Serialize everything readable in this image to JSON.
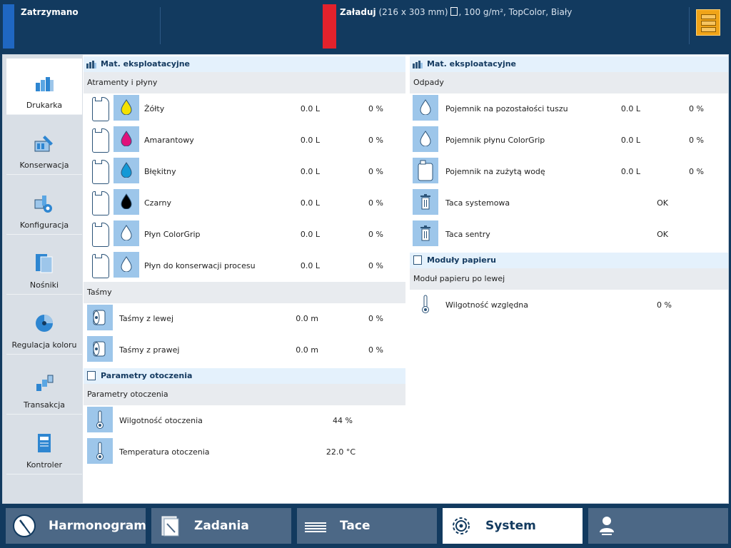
{
  "status": {
    "state": "Zatrzymano",
    "load_label": "Załaduj",
    "load_size": "(216 x 303 mm)",
    "load_rest": ", 100 g/m², TopColor, Biały"
  },
  "nav": {
    "items": [
      {
        "label": "Drukarka",
        "icon": "printer-icon",
        "active": true
      },
      {
        "label": "Konserwacja",
        "icon": "maintenance-icon"
      },
      {
        "label": "Konfiguracja",
        "icon": "configuration-icon"
      },
      {
        "label": "Nośniki",
        "icon": "media-icon"
      },
      {
        "label": "Regulacja koloru",
        "icon": "color-calibration-icon"
      },
      {
        "label": "Transakcja",
        "icon": "transaction-icon"
      },
      {
        "label": "Kontroler",
        "icon": "controller-icon"
      }
    ]
  },
  "left_panel": {
    "header": "Mat. eksploatacyjne",
    "inks_header": "Atramenty i płyny",
    "inks": [
      {
        "name": "Żółty",
        "volume": "0.0 L",
        "percent": "0 %",
        "color": "#f4e100"
      },
      {
        "name": "Amarantowy",
        "volume": "0.0 L",
        "percent": "0 %",
        "color": "#e0127b"
      },
      {
        "name": "Błękitny",
        "volume": "0.0 L",
        "percent": "0 %",
        "color": "#1499d6"
      },
      {
        "name": "Czarny",
        "volume": "0.0 L",
        "percent": "0 %",
        "color": "#000000"
      },
      {
        "name": "Płyn ColorGrip",
        "volume": "0.0 L",
        "percent": "0 %",
        "color": "#ffffff"
      },
      {
        "name": "Płyn do konserwacji procesu",
        "volume": "0.0 L",
        "percent": "0 %",
        "color": "#ffffff"
      }
    ],
    "tapes_header": "Taśmy",
    "tapes": [
      {
        "name": "Taśmy z lewej",
        "length": "0.0 m",
        "percent": "0 %"
      },
      {
        "name": "Taśmy z prawej",
        "length": "0.0 m",
        "percent": "0 %"
      }
    ],
    "env_section": "Parametry otoczenia",
    "env_header": "Parametry otoczenia",
    "env": [
      {
        "name": "Wilgotność otoczenia",
        "value": "44 %"
      },
      {
        "name": "Temperatura otoczenia",
        "value": "22.0 °C"
      }
    ]
  },
  "right_panel": {
    "header": "Mat. eksploatacyjne",
    "waste_header": "Odpady",
    "waste": [
      {
        "name": "Pojemnik na pozostałości tuszu",
        "volume": "0.0 L",
        "percent": "0 %"
      },
      {
        "name": "Pojemnik płynu ColorGrip",
        "volume": "0.0 L",
        "percent": "0 %"
      },
      {
        "name": "Pojemnik na zużytą wodę",
        "volume": "0.0 L",
        "percent": "0 %"
      },
      {
        "name": "Taca systemowa",
        "state": "OK"
      },
      {
        "name": "Taca sentry",
        "state": "OK"
      }
    ],
    "paper_section": "Moduły papieru",
    "paper_header": "Moduł papieru po lewej",
    "paper": [
      {
        "name": "Wilgotność względna",
        "value": "0 %"
      }
    ]
  },
  "bottom": {
    "tabs": [
      {
        "label": "Harmonogram"
      },
      {
        "label": "Zadania"
      },
      {
        "label": "Tace"
      },
      {
        "label": "System",
        "active": true
      },
      {
        "label": ""
      }
    ]
  },
  "colors": {
    "dark_blue": "#123a5f",
    "accent_blue": "#1f67c2",
    "alert_red": "#e3222c",
    "icon_bg": "#9dc6ea"
  }
}
